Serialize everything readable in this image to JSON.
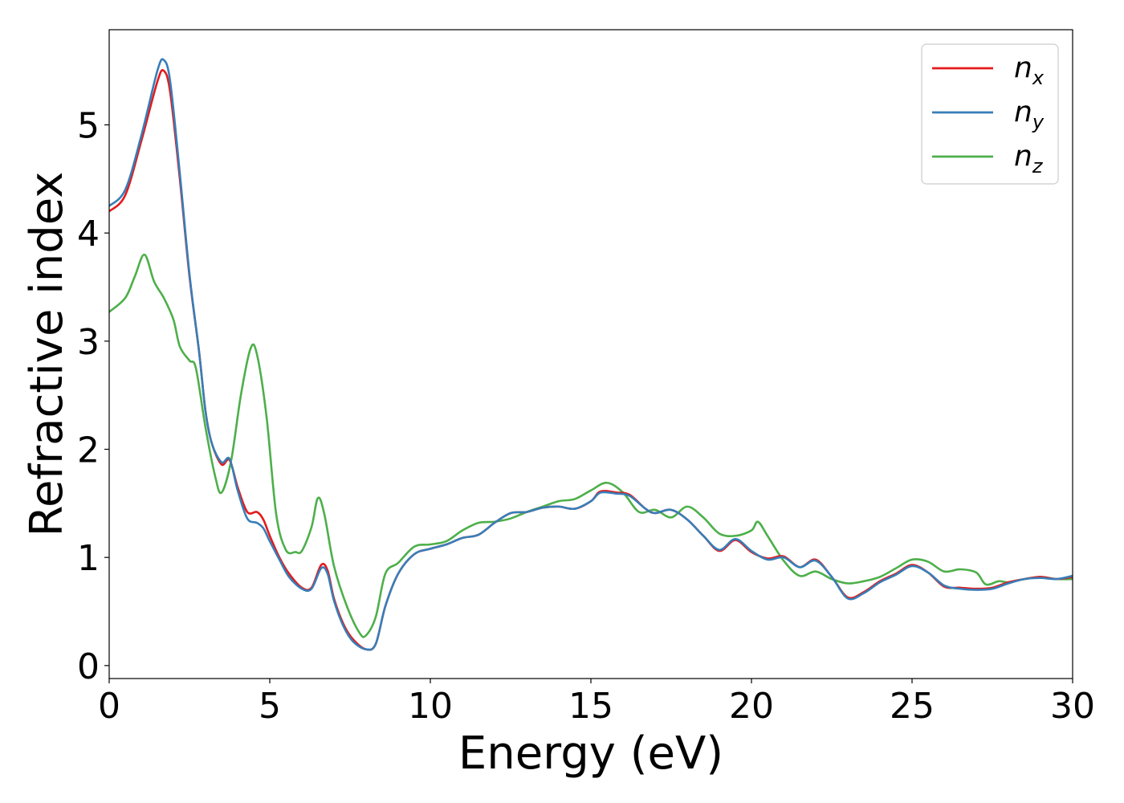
{
  "chart_data": {
    "type": "line",
    "xlabel": "Energy (eV)",
    "ylabel": "Refractive index",
    "xlim": [
      0,
      30
    ],
    "ylim": [
      -0.12,
      5.88
    ],
    "xticks": [
      0,
      5,
      10,
      15,
      20,
      25,
      30
    ],
    "yticks": [
      0,
      1,
      2,
      3,
      4,
      5
    ],
    "grid": false,
    "legend_position": "top-right",
    "series": [
      {
        "name": "n",
        "subscript": "x",
        "color": "#e41a1c",
        "points": [
          [
            0,
            4.2
          ],
          [
            0.5,
            4.35
          ],
          [
            1,
            4.85
          ],
          [
            1.5,
            5.4
          ],
          [
            1.7,
            5.5
          ],
          [
            1.9,
            5.3
          ],
          [
            2.2,
            4.5
          ],
          [
            2.5,
            3.6
          ],
          [
            2.8,
            2.9
          ],
          [
            3.0,
            2.35
          ],
          [
            3.2,
            2.05
          ],
          [
            3.5,
            1.86
          ],
          [
            3.75,
            1.9
          ],
          [
            4.0,
            1.65
          ],
          [
            4.3,
            1.42
          ],
          [
            4.6,
            1.42
          ],
          [
            4.8,
            1.35
          ],
          [
            5.0,
            1.2
          ],
          [
            5.3,
            1.0
          ],
          [
            5.6,
            0.85
          ],
          [
            6.0,
            0.72
          ],
          [
            6.3,
            0.72
          ],
          [
            6.6,
            0.93
          ],
          [
            6.8,
            0.88
          ],
          [
            7.0,
            0.62
          ],
          [
            7.3,
            0.38
          ],
          [
            7.6,
            0.24
          ],
          [
            8.0,
            0.15
          ],
          [
            8.3,
            0.2
          ],
          [
            8.6,
            0.55
          ],
          [
            9.0,
            0.85
          ],
          [
            9.5,
            1.03
          ],
          [
            10,
            1.08
          ],
          [
            10.5,
            1.12
          ],
          [
            11,
            1.18
          ],
          [
            11.5,
            1.21
          ],
          [
            12,
            1.32
          ],
          [
            12.5,
            1.41
          ],
          [
            13,
            1.42
          ],
          [
            13.5,
            1.46
          ],
          [
            14,
            1.47
          ],
          [
            14.5,
            1.45
          ],
          [
            15,
            1.52
          ],
          [
            15.3,
            1.61
          ],
          [
            15.8,
            1.6
          ],
          [
            16.2,
            1.58
          ],
          [
            16.7,
            1.45
          ],
          [
            17.0,
            1.41
          ],
          [
            17.5,
            1.44
          ],
          [
            18.0,
            1.35
          ],
          [
            18.5,
            1.2
          ],
          [
            19.0,
            1.06
          ],
          [
            19.5,
            1.16
          ],
          [
            20.0,
            1.05
          ],
          [
            20.5,
            0.99
          ],
          [
            21.0,
            1.01
          ],
          [
            21.5,
            0.91
          ],
          [
            22.0,
            0.98
          ],
          [
            22.5,
            0.82
          ],
          [
            23.0,
            0.63
          ],
          [
            23.5,
            0.68
          ],
          [
            24.0,
            0.78
          ],
          [
            24.5,
            0.85
          ],
          [
            25.0,
            0.93
          ],
          [
            25.5,
            0.86
          ],
          [
            26.0,
            0.73
          ],
          [
            26.5,
            0.72
          ],
          [
            27.0,
            0.71
          ],
          [
            27.5,
            0.72
          ],
          [
            28.0,
            0.77
          ],
          [
            28.5,
            0.8
          ],
          [
            29.0,
            0.82
          ],
          [
            29.5,
            0.8
          ],
          [
            30.0,
            0.82
          ]
        ]
      },
      {
        "name": "n",
        "subscript": "y",
        "color": "#377eb8",
        "points": [
          [
            0,
            4.25
          ],
          [
            0.5,
            4.4
          ],
          [
            1,
            4.9
          ],
          [
            1.5,
            5.5
          ],
          [
            1.7,
            5.6
          ],
          [
            1.9,
            5.4
          ],
          [
            2.2,
            4.55
          ],
          [
            2.5,
            3.62
          ],
          [
            2.8,
            2.9
          ],
          [
            3.0,
            2.35
          ],
          [
            3.2,
            2.05
          ],
          [
            3.5,
            1.88
          ],
          [
            3.75,
            1.91
          ],
          [
            4.0,
            1.62
          ],
          [
            4.3,
            1.36
          ],
          [
            4.6,
            1.32
          ],
          [
            4.8,
            1.27
          ],
          [
            5.0,
            1.15
          ],
          [
            5.3,
            0.98
          ],
          [
            5.6,
            0.82
          ],
          [
            6.0,
            0.71
          ],
          [
            6.3,
            0.71
          ],
          [
            6.6,
            0.9
          ],
          [
            6.8,
            0.85
          ],
          [
            7.0,
            0.6
          ],
          [
            7.3,
            0.36
          ],
          [
            7.6,
            0.22
          ],
          [
            8.0,
            0.15
          ],
          [
            8.3,
            0.2
          ],
          [
            8.6,
            0.55
          ],
          [
            9.0,
            0.85
          ],
          [
            9.5,
            1.03
          ],
          [
            10,
            1.08
          ],
          [
            10.5,
            1.12
          ],
          [
            11,
            1.18
          ],
          [
            11.5,
            1.21
          ],
          [
            12,
            1.32
          ],
          [
            12.5,
            1.41
          ],
          [
            13,
            1.42
          ],
          [
            13.5,
            1.46
          ],
          [
            14,
            1.47
          ],
          [
            14.5,
            1.45
          ],
          [
            15,
            1.52
          ],
          [
            15.3,
            1.6
          ],
          [
            15.8,
            1.59
          ],
          [
            16.2,
            1.57
          ],
          [
            16.7,
            1.45
          ],
          [
            17.0,
            1.41
          ],
          [
            17.5,
            1.44
          ],
          [
            18.0,
            1.35
          ],
          [
            18.5,
            1.2
          ],
          [
            19.0,
            1.07
          ],
          [
            19.5,
            1.17
          ],
          [
            20.0,
            1.06
          ],
          [
            20.5,
            0.98
          ],
          [
            21.0,
            1.0
          ],
          [
            21.5,
            0.91
          ],
          [
            22.0,
            0.97
          ],
          [
            22.5,
            0.82
          ],
          [
            23.0,
            0.62
          ],
          [
            23.5,
            0.67
          ],
          [
            24.0,
            0.77
          ],
          [
            24.5,
            0.84
          ],
          [
            25.0,
            0.92
          ],
          [
            25.5,
            0.86
          ],
          [
            26.0,
            0.74
          ],
          [
            26.5,
            0.71
          ],
          [
            27.0,
            0.7
          ],
          [
            27.5,
            0.71
          ],
          [
            28.0,
            0.76
          ],
          [
            28.5,
            0.8
          ],
          [
            29.0,
            0.81
          ],
          [
            29.5,
            0.8
          ],
          [
            30.0,
            0.83
          ]
        ]
      },
      {
        "name": "n",
        "subscript": "z",
        "color": "#4daf4a",
        "points": [
          [
            0,
            3.27
          ],
          [
            0.5,
            3.4
          ],
          [
            0.8,
            3.6
          ],
          [
            1.1,
            3.8
          ],
          [
            1.4,
            3.55
          ],
          [
            1.7,
            3.4
          ],
          [
            2.0,
            3.2
          ],
          [
            2.2,
            2.95
          ],
          [
            2.5,
            2.82
          ],
          [
            2.7,
            2.75
          ],
          [
            3.0,
            2.2
          ],
          [
            3.3,
            1.75
          ],
          [
            3.5,
            1.6
          ],
          [
            3.8,
            1.9
          ],
          [
            4.1,
            2.5
          ],
          [
            4.4,
            2.93
          ],
          [
            4.6,
            2.88
          ],
          [
            4.9,
            2.3
          ],
          [
            5.2,
            1.4
          ],
          [
            5.5,
            1.07
          ],
          [
            5.8,
            1.05
          ],
          [
            6.0,
            1.06
          ],
          [
            6.3,
            1.28
          ],
          [
            6.5,
            1.55
          ],
          [
            6.7,
            1.4
          ],
          [
            7.0,
            0.92
          ],
          [
            7.4,
            0.55
          ],
          [
            7.8,
            0.3
          ],
          [
            8.0,
            0.28
          ],
          [
            8.3,
            0.45
          ],
          [
            8.6,
            0.85
          ],
          [
            9.0,
            0.95
          ],
          [
            9.5,
            1.1
          ],
          [
            10.0,
            1.12
          ],
          [
            10.5,
            1.15
          ],
          [
            11,
            1.25
          ],
          [
            11.5,
            1.32
          ],
          [
            12,
            1.33
          ],
          [
            12.5,
            1.36
          ],
          [
            13,
            1.42
          ],
          [
            13.5,
            1.47
          ],
          [
            14,
            1.52
          ],
          [
            14.5,
            1.54
          ],
          [
            15,
            1.62
          ],
          [
            15.5,
            1.69
          ],
          [
            16.0,
            1.6
          ],
          [
            16.5,
            1.42
          ],
          [
            17.0,
            1.44
          ],
          [
            17.5,
            1.37
          ],
          [
            18.0,
            1.47
          ],
          [
            18.5,
            1.37
          ],
          [
            19.0,
            1.22
          ],
          [
            19.5,
            1.2
          ],
          [
            20.0,
            1.25
          ],
          [
            20.2,
            1.33
          ],
          [
            20.5,
            1.2
          ],
          [
            21.0,
            0.97
          ],
          [
            21.5,
            0.83
          ],
          [
            22.0,
            0.87
          ],
          [
            22.5,
            0.8
          ],
          [
            23.0,
            0.76
          ],
          [
            23.5,
            0.78
          ],
          [
            24.0,
            0.82
          ],
          [
            24.5,
            0.9
          ],
          [
            25.0,
            0.98
          ],
          [
            25.5,
            0.96
          ],
          [
            26.0,
            0.87
          ],
          [
            26.5,
            0.89
          ],
          [
            27.0,
            0.86
          ],
          [
            27.3,
            0.75
          ],
          [
            27.7,
            0.78
          ],
          [
            28.0,
            0.77
          ],
          [
            28.5,
            0.8
          ],
          [
            29.0,
            0.82
          ],
          [
            29.5,
            0.8
          ],
          [
            30.0,
            0.8
          ]
        ]
      }
    ]
  }
}
